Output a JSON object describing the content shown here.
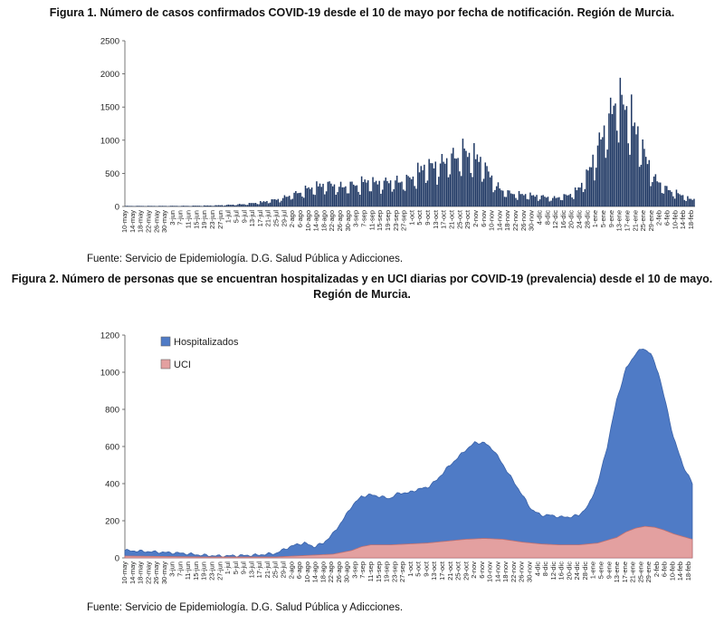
{
  "figure1": {
    "title": "Figura 1. Número de casos confirmados COVID-19 desde el 10 de mayo por fecha de notificación. Región de Murcia.",
    "source": "Fuente: Servicio de Epidemiología. D.G. Salud Pública y Adicciones."
  },
  "figure2": {
    "title": "Figura 2. Número de personas que se encuentran hospitalizadas y en UCI diarias por COVID-19 (prevalencia) desde el 10 de mayo. Región de Murcia.",
    "source": "Fuente: Servicio de Epidemiología. D.G. Salud Pública y Adicciones."
  },
  "chart_data": [
    {
      "type": "bar",
      "title": "Figura 1. Número de casos confirmados COVID-19 desde el 10 de mayo por fecha de notificación. Región de Murcia.",
      "xlabel": "",
      "ylabel": "",
      "ylim": [
        0,
        2500
      ],
      "yticks": [
        0,
        500,
        1000,
        1500,
        2000,
        2500
      ],
      "grid": false,
      "bar_color": "#1f3864",
      "x_tick_labels": [
        "10-may",
        "14-may",
        "18-may",
        "22-may",
        "26-may",
        "30-may",
        "3-jun",
        "7-jun",
        "11-jun",
        "15-jun",
        "19-jun",
        "23-jun",
        "27-jun",
        "1-jul",
        "5-jul",
        "9-jul",
        "13-jul",
        "17-jul",
        "21-jul",
        "25-jul",
        "29-jul",
        "2-ago",
        "6-ago",
        "10-ago",
        "14-ago",
        "18-ago",
        "22-ago",
        "26-ago",
        "30-ago",
        "3-sep",
        "7-sep",
        "11-sep",
        "15-sep",
        "19-sep",
        "23-sep",
        "27-sep",
        "1-oct",
        "5-oct",
        "9-oct",
        "13-oct",
        "17-oct",
        "21-oct",
        "25-oct",
        "29-oct",
        "2-nov",
        "6-nov",
        "10-nov",
        "14-nov",
        "18-nov",
        "22-nov",
        "26-nov",
        "30-nov",
        "4-dic",
        "8-dic",
        "12-dic",
        "16-dic",
        "20-dic",
        "24-dic",
        "28-dic",
        "1-ene",
        "5-ene",
        "9-ene",
        "13-ene",
        "17-ene",
        "21-ene",
        "25-ene",
        "29-ene",
        "2-feb",
        "6-feb",
        "10-feb",
        "14-feb",
        "18-feb"
      ],
      "anchors": [
        [
          0,
          10
        ],
        [
          20,
          10
        ],
        [
          40,
          12
        ],
        [
          55,
          18
        ],
        [
          65,
          30
        ],
        [
          75,
          45
        ],
        [
          85,
          80
        ],
        [
          95,
          130
        ],
        [
          105,
          220
        ],
        [
          115,
          330
        ],
        [
          125,
          400
        ],
        [
          135,
          360
        ],
        [
          145,
          400
        ],
        [
          150,
          460
        ],
        [
          155,
          420
        ],
        [
          165,
          450
        ],
        [
          175,
          470
        ],
        [
          180,
          560
        ],
        [
          185,
          700
        ],
        [
          190,
          720
        ],
        [
          195,
          760
        ],
        [
          200,
          840
        ],
        [
          205,
          900
        ],
        [
          210,
          980
        ],
        [
          214,
          940
        ],
        [
          220,
          860
        ],
        [
          225,
          650
        ],
        [
          230,
          420
        ],
        [
          235,
          280
        ],
        [
          240,
          240
        ],
        [
          245,
          220
        ],
        [
          250,
          210
        ],
        [
          255,
          190
        ],
        [
          260,
          180
        ],
        [
          265,
          150
        ],
        [
          270,
          170
        ],
        [
          275,
          200
        ],
        [
          280,
          270
        ],
        [
          285,
          420
        ],
        [
          290,
          750
        ],
        [
          295,
          1150
        ],
        [
          300,
          1500
        ],
        [
          304,
          1850
        ],
        [
          306,
          2020
        ],
        [
          308,
          1900
        ],
        [
          312,
          1750
        ],
        [
          316,
          1550
        ],
        [
          320,
          1200
        ],
        [
          325,
          800
        ],
        [
          330,
          500
        ],
        [
          335,
          350
        ],
        [
          340,
          280
        ],
        [
          345,
          220
        ],
        [
          350,
          150
        ],
        [
          354,
          120
        ]
      ],
      "days": 355,
      "note_values": "daily bars interpolated between the anchor points [day index from 10-may, confirmed cases]"
    },
    {
      "type": "area",
      "title": "Figura 2. Número de personas que se encuentran hospitalizadas y en UCI diarias por COVID-19 (prevalencia) desde el 10 de mayo. Región de Murcia.",
      "xlabel": "",
      "ylabel": "",
      "ylim": [
        0,
        1200
      ],
      "yticks": [
        0,
        200,
        400,
        600,
        800,
        1000,
        1200
      ],
      "grid": false,
      "legend_placement": "top-left",
      "x_tick_labels": [
        "10-may",
        "14-may",
        "18-may",
        "22-may",
        "26-may",
        "30-may",
        "3-jun",
        "7-jun",
        "11-jun",
        "15-jun",
        "19-jun",
        "23-jun",
        "27-jun",
        "1-jul",
        "5-jul",
        "9-jul",
        "13-jul",
        "17-jul",
        "21-jul",
        "25-jul",
        "29-jul",
        "2-ago",
        "6-ago",
        "10-ago",
        "14-ago",
        "18-ago",
        "22-ago",
        "26-ago",
        "30-ago",
        "3-sep",
        "7-sep",
        "11-sep",
        "15-sep",
        "19-sep",
        "23-sep",
        "27-sep",
        "1-oct",
        "5-oct",
        "9-oct",
        "13-oct",
        "17-oct",
        "21-oct",
        "25-oct",
        "29-oct",
        "2-nov",
        "6-nov",
        "10-nov",
        "14-nov",
        "18-nov",
        "22-nov",
        "26-nov",
        "30-nov",
        "4-dic",
        "8-dic",
        "12-dic",
        "16-dic",
        "20-dic",
        "24-dic",
        "28-dic",
        "1-ene",
        "5-ene",
        "9-ene",
        "13-ene",
        "17-ene",
        "21-ene",
        "25-ene",
        "29-ene",
        "2-feb",
        "6-feb",
        "10-feb",
        "14-feb",
        "18-feb"
      ],
      "series": [
        {
          "name": "Hospitalizados",
          "color": "#4f7bc6",
          "points": [
            [
              0,
              40
            ],
            [
              10,
              35
            ],
            [
              20,
              30
            ],
            [
              30,
              25
            ],
            [
              40,
              15
            ],
            [
              50,
              10
            ],
            [
              60,
              12
            ],
            [
              70,
              15
            ],
            [
              80,
              25
            ],
            [
              85,
              50
            ],
            [
              90,
              70
            ],
            [
              95,
              80
            ],
            [
              100,
              60
            ],
            [
              105,
              80
            ],
            [
              110,
              130
            ],
            [
              115,
              200
            ],
            [
              120,
              280
            ],
            [
              125,
              330
            ],
            [
              130,
              340
            ],
            [
              135,
              330
            ],
            [
              140,
              320
            ],
            [
              145,
              350
            ],
            [
              150,
              350
            ],
            [
              155,
              370
            ],
            [
              160,
              380
            ],
            [
              165,
              420
            ],
            [
              170,
              480
            ],
            [
              175,
              530
            ],
            [
              180,
              580
            ],
            [
              185,
              620
            ],
            [
              190,
              620
            ],
            [
              195,
              580
            ],
            [
              200,
              500
            ],
            [
              205,
              420
            ],
            [
              210,
              340
            ],
            [
              215,
              260
            ],
            [
              220,
              230
            ],
            [
              225,
              230
            ],
            [
              230,
              220
            ],
            [
              235,
              220
            ],
            [
              240,
              230
            ],
            [
              245,
              280
            ],
            [
              250,
              400
            ],
            [
              255,
              600
            ],
            [
              260,
              850
            ],
            [
              265,
              1020
            ],
            [
              270,
              1100
            ],
            [
              274,
              1130
            ],
            [
              278,
              1100
            ],
            [
              282,
              1000
            ],
            [
              286,
              830
            ],
            [
              290,
              650
            ],
            [
              295,
              500
            ],
            [
              300,
              400
            ]
          ]
        },
        {
          "name": "UCI",
          "color": "#e3a0a0",
          "points": [
            [
              0,
              10
            ],
            [
              40,
              5
            ],
            [
              80,
              5
            ],
            [
              100,
              15
            ],
            [
              110,
              20
            ],
            [
              120,
              40
            ],
            [
              125,
              60
            ],
            [
              130,
              70
            ],
            [
              140,
              70
            ],
            [
              150,
              75
            ],
            [
              160,
              80
            ],
            [
              170,
              90
            ],
            [
              180,
              100
            ],
            [
              190,
              105
            ],
            [
              200,
              100
            ],
            [
              210,
              85
            ],
            [
              220,
              75
            ],
            [
              230,
              70
            ],
            [
              240,
              70
            ],
            [
              250,
              80
            ],
            [
              260,
              110
            ],
            [
              265,
              140
            ],
            [
              270,
              160
            ],
            [
              275,
              170
            ],
            [
              280,
              165
            ],
            [
              285,
              150
            ],
            [
              290,
              130
            ],
            [
              295,
              115
            ],
            [
              300,
              100
            ]
          ]
        }
      ],
      "days": 301,
      "note_values": "points are [day index from 10-may, persons]"
    }
  ]
}
